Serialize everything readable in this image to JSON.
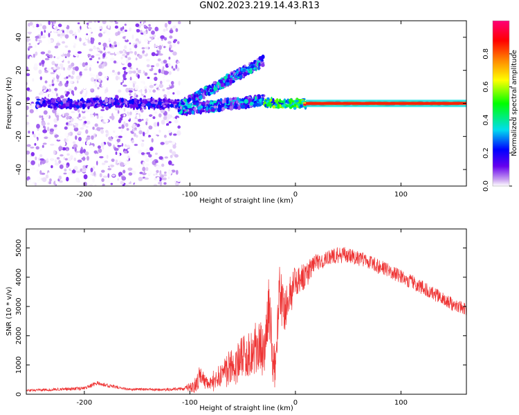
{
  "title": "GN02.2023.219.14.43.R13",
  "colors": {
    "snr_line": "#ee3333",
    "frame": "#000000"
  },
  "chart_data": [
    {
      "type": "heatmap",
      "xlabel": "Height of straight line (km)",
      "ylabel": "Frequency (Hz)",
      "xlim": [
        -255,
        162
      ],
      "ylim": [
        -50,
        50
      ],
      "xticks": [
        -200,
        -100,
        0,
        100
      ],
      "yticks": [
        -40,
        -20,
        0,
        20,
        40
      ],
      "colorbar": {
        "label": "Normalized spectral amplitude",
        "range": [
          0,
          1
        ],
        "ticks": [
          0.0,
          0.2,
          0.4,
          0.6,
          0.8
        ],
        "colormap": "rainbow (violet-blue-cyan-green-yellow-red-magenta)"
      },
      "features": [
        {
          "x_range": [
            -255,
            -110
          ],
          "frequency_range": [
            -50,
            50
          ],
          "amplitude_range": [
            0.0,
            0.1
          ]
        },
        {
          "x_range": [
            -245,
            -110
          ],
          "frequency_range": [
            -3,
            3
          ],
          "amplitude_range": [
            0.05,
            0.25
          ]
        },
        {
          "x_range": [
            -110,
            -30
          ],
          "frequency_range": [
            -10,
            30
          ],
          "amplitude_range": [
            0.05,
            0.4
          ]
        },
        {
          "x_range": [
            -30,
            10
          ],
          "frequency_range": [
            -3,
            3
          ],
          "amplitude_range": [
            0.2,
            0.6
          ]
        },
        {
          "x_range": [
            10,
            162
          ],
          "frequency_range": [
            -1,
            1
          ],
          "amplitude_range": [
            0.7,
            1.0
          ]
        }
      ]
    },
    {
      "type": "line",
      "xlabel": "Height of straight line (km)",
      "ylabel": "SNR (10 * v/v)",
      "xlim": [
        -255,
        162
      ],
      "ylim": [
        0,
        5650
      ],
      "xticks": [
        -200,
        -100,
        0,
        100
      ],
      "yticks": [
        0,
        1000,
        2000,
        3000,
        4000,
        5000
      ],
      "series": [
        {
          "x": [
            -255,
            -230,
            -200,
            -188,
            -160,
            -130,
            -105,
            -95,
            -90,
            -85,
            -75,
            -65,
            -55,
            -45,
            -35,
            -30,
            -25,
            -20,
            -15,
            -10,
            -5,
            0,
            5,
            10,
            15,
            20,
            30,
            40,
            50,
            60,
            70,
            80,
            90,
            100,
            110,
            120,
            130,
            140,
            150,
            162
          ],
          "y": [
            130,
            160,
            200,
            380,
            170,
            160,
            180,
            320,
            700,
            350,
            500,
            800,
            1100,
            1300,
            1700,
            1400,
            2800,
            900,
            3400,
            2800,
            3400,
            3800,
            4000,
            4000,
            4350,
            4500,
            4650,
            4750,
            4750,
            4650,
            4500,
            4350,
            4200,
            4000,
            3850,
            3650,
            3450,
            3250,
            3050,
            2900
          ],
          "y_spread": [
            80,
            100,
            120,
            150,
            90,
            90,
            120,
            600,
            800,
            500,
            800,
            1200,
            1500,
            1600,
            1800,
            2000,
            2600,
            2000,
            2000,
            1600,
            1400,
            1200,
            900,
            900,
            700,
            600,
            550,
            550,
            550,
            550,
            500,
            500,
            500,
            500,
            500,
            500,
            450,
            450,
            450,
            400
          ]
        }
      ]
    }
  ]
}
